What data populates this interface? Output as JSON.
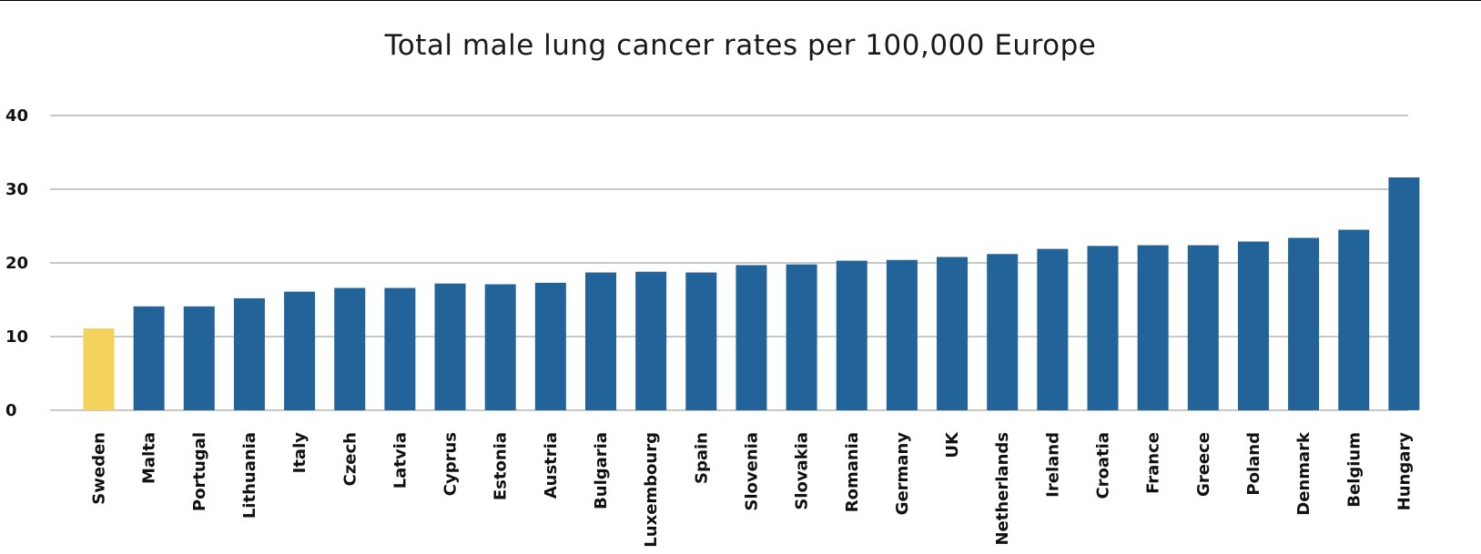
{
  "chart_data": {
    "type": "bar",
    "title": "Total male lung cancer rates per 100,000 Europe",
    "xlabel": "",
    "ylabel": "",
    "ylim": [
      0,
      40
    ],
    "yticks": [
      "0",
      "10",
      "20",
      "30",
      "40"
    ],
    "grid": true,
    "categories": [
      "Sweden",
      "Malta",
      "Portugal",
      "Lithuania",
      "Italy",
      "Czech",
      "Latvia",
      "Cyprus",
      "Estonia",
      "Austria",
      "Bulgaria",
      "Luxembourg",
      "Spain",
      "Slovenia",
      "Slovakia",
      "Romania",
      "Germany",
      "UK",
      "Netherlands",
      "Ireland",
      "Croatia",
      "France",
      "Greece",
      "Poland",
      "Denmark",
      "Belgium",
      "Hungary"
    ],
    "values": [
      11.1,
      14.1,
      14.1,
      15.2,
      16.1,
      16.6,
      16.6,
      17.2,
      17.1,
      17.3,
      18.7,
      18.8,
      18.7,
      19.7,
      19.8,
      20.3,
      20.4,
      20.8,
      21.2,
      21.9,
      22.3,
      22.4,
      22.4,
      22.9,
      23.4,
      24.5,
      31.6
    ],
    "colors": {
      "highlight": "#f3d35a",
      "bar": "#22639a",
      "grid": "#a6a6a6"
    },
    "highlight_index": 0
  }
}
